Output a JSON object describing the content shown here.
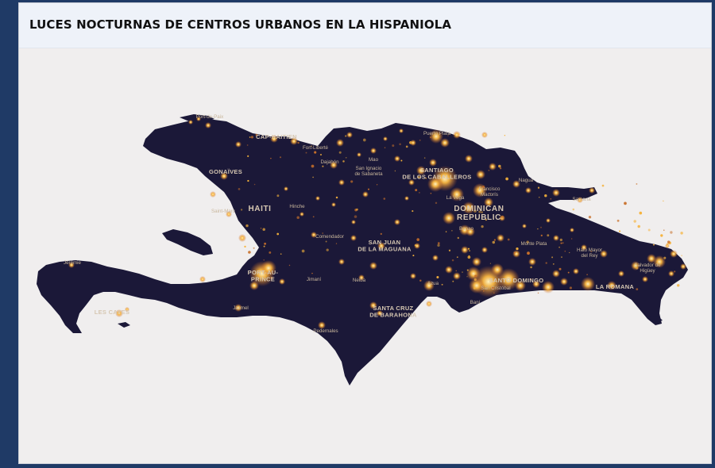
{
  "title": "LUCES NOCTURNAS DE CENTROS URBANOS EN LA HISPANIOLA",
  "colors": {
    "land": "#1b1838",
    "light_core": "#ffe7a0",
    "light_mid": "#f6b23b",
    "light_dim": "#c8702a",
    "label": "#c9b79c",
    "label_country": "#d6c7b2"
  },
  "countries": [
    {
      "name": "HAITI"
    },
    {
      "name": "DOMINICAN\nREPUBLIC"
    }
  ],
  "major_cities": [
    "CAP-HAITIEN",
    "GONAÏVES",
    "PORT-AU-\nPRINCE",
    "LES CAYES",
    "SANTIAGO\nDE LOS CABALLEROS",
    "SAN JUAN\nDE LA MAGUANA",
    "SANTA CRUZ\nDE BARAHONA",
    "SANTO DOMINGO",
    "LA ROMANA"
  ],
  "minor_cities": [
    "Port-de-Paix",
    "Fort-Liberté",
    "Dajabón",
    "Mao",
    "San Ignacio\nde Sabaneta",
    "Puerto Plata",
    "Nagua",
    "Samaná",
    "Francisco\nMacorís",
    "La Vega",
    "Bonao",
    "Hinche",
    "Saint-Marc",
    "Comendador",
    "Jérémie",
    "Jimaní",
    "Neiba",
    "Azua",
    "Jacmel",
    "Pedernales",
    "Baní",
    "San Cristóbal",
    "Monte Plata",
    "Hato Mayor\ndel Rey",
    "Salvador de\nHigüey"
  ]
}
